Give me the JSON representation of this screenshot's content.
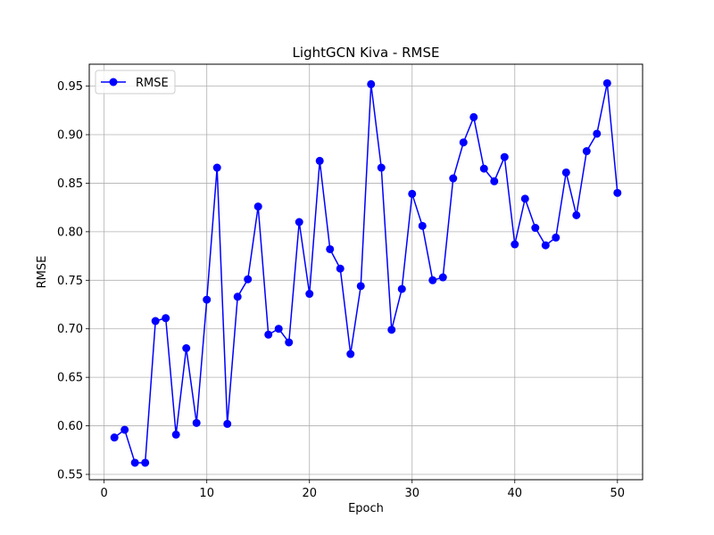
{
  "chart_data": {
    "type": "line",
    "title": "LightGCN Kiva - RMSE",
    "xlabel": "Epoch",
    "ylabel": "RMSE",
    "xlim": [
      -1.45,
      52.45
    ],
    "ylim": [
      0.5445,
      0.9726
    ],
    "xticks": [
      0,
      10,
      20,
      30,
      40,
      50
    ],
    "yticks": [
      0.55,
      0.6,
      0.65,
      0.7,
      0.75,
      0.8,
      0.85,
      0.9,
      0.95
    ],
    "grid": true,
    "legend_position": "upper-left",
    "series": [
      {
        "name": "RMSE",
        "color": "#0000ff",
        "marker": "circle",
        "x": [
          1,
          2,
          3,
          4,
          5,
          6,
          7,
          8,
          9,
          10,
          11,
          12,
          13,
          14,
          15,
          16,
          17,
          18,
          19,
          20,
          21,
          22,
          23,
          24,
          25,
          26,
          27,
          28,
          29,
          30,
          31,
          32,
          33,
          34,
          35,
          36,
          37,
          38,
          39,
          40,
          41,
          42,
          43,
          44,
          45,
          46,
          47,
          48,
          49,
          50
        ],
        "values": [
          0.588,
          0.596,
          0.562,
          0.562,
          0.708,
          0.711,
          0.591,
          0.68,
          0.603,
          0.73,
          0.866,
          0.602,
          0.733,
          0.751,
          0.826,
          0.694,
          0.7,
          0.686,
          0.81,
          0.736,
          0.873,
          0.782,
          0.762,
          0.674,
          0.744,
          0.952,
          0.866,
          0.699,
          0.741,
          0.839,
          0.806,
          0.75,
          0.753,
          0.855,
          0.892,
          0.918,
          0.865,
          0.852,
          0.877,
          0.787,
          0.834,
          0.804,
          0.786,
          0.794,
          0.861,
          0.817,
          0.883,
          0.901,
          0.953,
          0.84
        ]
      }
    ]
  }
}
